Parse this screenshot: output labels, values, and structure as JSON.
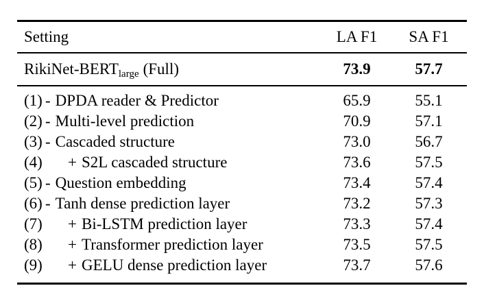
{
  "table": {
    "colors": {
      "text": "#000000",
      "background": "#ffffff",
      "rule": "#000000"
    },
    "headers": {
      "setting": "Setting",
      "la": "LA F1",
      "sa": "SA F1"
    },
    "full_row": {
      "label_main": "RikiNet-BERT",
      "label_sub": "large",
      "label_suffix": "(Full)",
      "la": "73.9",
      "sa": "57.7"
    },
    "rows": [
      {
        "num": "(1)",
        "op": "-",
        "label": "DPDA reader & Predictor",
        "la": "65.9",
        "sa": "55.1"
      },
      {
        "num": "(2)",
        "op": "-",
        "label": "Multi-level prediction",
        "la": "70.9",
        "sa": "57.1"
      },
      {
        "num": "(3)",
        "op": "-",
        "label": "Cascaded structure",
        "la": "73.0",
        "sa": "56.7"
      },
      {
        "num": "(4)",
        "op": "+",
        "label": "S2L cascaded structure",
        "la": "73.6",
        "sa": "57.5"
      },
      {
        "num": "(5)",
        "op": "-",
        "label": "Question embedding",
        "la": "73.4",
        "sa": "57.4"
      },
      {
        "num": "(6)",
        "op": "-",
        "label": "Tanh dense prediction layer",
        "la": "73.2",
        "sa": "57.3"
      },
      {
        "num": "(7)",
        "op": "+",
        "label": "Bi-LSTM prediction layer",
        "la": "73.3",
        "sa": "57.4"
      },
      {
        "num": "(8)",
        "op": "+",
        "label": "Transformer prediction layer",
        "la": "73.5",
        "sa": "57.5"
      },
      {
        "num": "(9)",
        "op": "+",
        "label": "GELU dense prediction layer",
        "la": "73.7",
        "sa": "57.6"
      }
    ]
  }
}
